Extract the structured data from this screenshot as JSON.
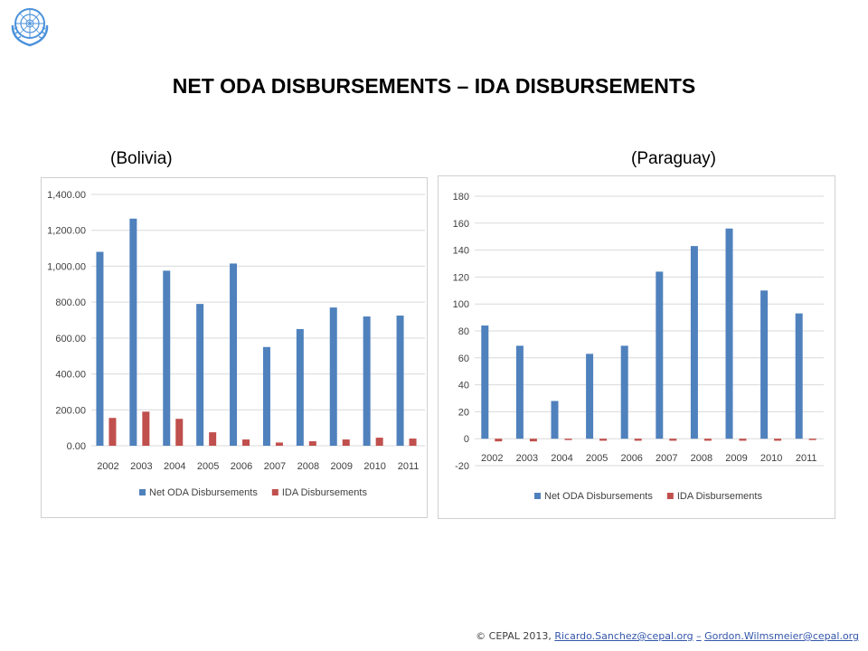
{
  "header": {
    "title": "NET ODA DISBURSEMENTS – IDA DISBURSEMENTS",
    "logo": "un-emblem-icon"
  },
  "charts": {
    "left_label": "(Bolivia)",
    "right_label": "(Paraguay)"
  },
  "footer": {
    "copyright": "© CEPAL 2013,",
    "link1": "Ricardo.Sanchez@cepal.org",
    "separator": "–",
    "link2": "Gordon.Wilmsmeier@cepal.org"
  },
  "colors": {
    "net_oda": "#4f81bd",
    "ida": "#c0504d",
    "grid": "#d9d9d9"
  },
  "chart_data": [
    {
      "type": "bar",
      "categories": [
        "2002",
        "2003",
        "2004",
        "2005",
        "2006",
        "2007",
        "2008",
        "2009",
        "2010",
        "2011"
      ],
      "series": [
        {
          "name": "Net ODA Disbursements",
          "values": [
            1080,
            1265,
            975,
            790,
            1015,
            550,
            650,
            770,
            720,
            725
          ]
        },
        {
          "name": "IDA Disbursements",
          "values": [
            155,
            190,
            150,
            75,
            35,
            18,
            25,
            35,
            45,
            40
          ]
        }
      ],
      "ylim": [
        0,
        1400
      ],
      "yticks": [
        "0.00",
        "200.00",
        "400.00",
        "600.00",
        "800.00",
        "1,000.00",
        "1,200.00",
        "1,400.00"
      ],
      "ytick_values": [
        0,
        200,
        400,
        600,
        800,
        1000,
        1200,
        1400
      ],
      "grid": true,
      "legend": "bottom"
    },
    {
      "type": "bar",
      "categories": [
        "2002",
        "2003",
        "2004",
        "2005",
        "2006",
        "2007",
        "2008",
        "2009",
        "2010",
        "2011"
      ],
      "series": [
        {
          "name": "Net ODA Disbursements",
          "values": [
            84,
            69,
            28,
            63,
            69,
            124,
            143,
            156,
            110,
            93
          ]
        },
        {
          "name": "IDA Disbursements",
          "values": [
            -2,
            -2,
            -1,
            -1.5,
            -1.5,
            -1.5,
            -1.5,
            -1.5,
            -1.5,
            -1
          ]
        }
      ],
      "ylim": [
        -20,
        180
      ],
      "yticks": [
        "-20",
        "0",
        "20",
        "40",
        "60",
        "80",
        "100",
        "120",
        "140",
        "160",
        "180"
      ],
      "ytick_values": [
        -20,
        0,
        20,
        40,
        60,
        80,
        100,
        120,
        140,
        160,
        180
      ],
      "grid": true,
      "legend": "bottom"
    }
  ]
}
